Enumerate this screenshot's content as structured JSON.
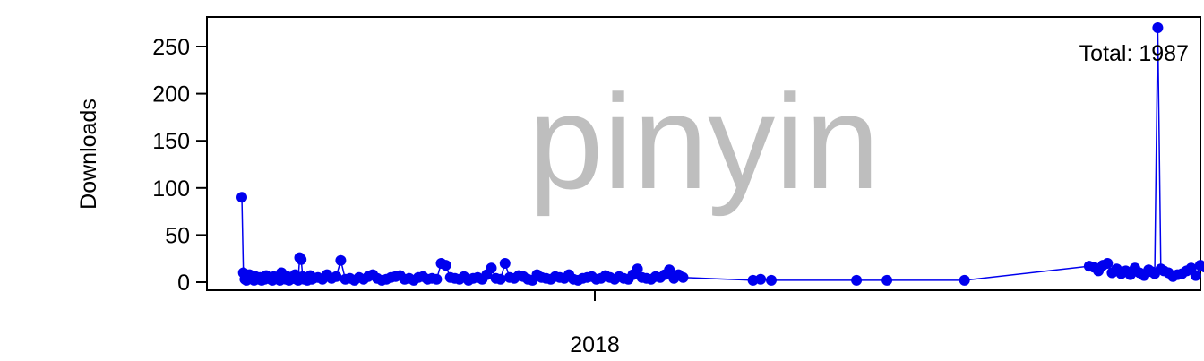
{
  "chart_data": {
    "type": "line",
    "title": "",
    "watermark": "pinyin",
    "annotation": "Total: 1987",
    "xlabel": "",
    "ylabel": "Downloads",
    "x_ticks": [
      "2018"
    ],
    "y_ticks": [
      0,
      50,
      100,
      150,
      200,
      250
    ],
    "ylim": [
      0,
      270
    ],
    "xlim": [
      "2017-05-04",
      "2019-02-14"
    ],
    "grid": false,
    "line_color": "#0000ee",
    "watermark_color": "#bebebe",
    "series": [
      {
        "x": [
          "2017-05-14",
          "2017-05-15",
          "2017-05-16",
          "2017-05-17",
          "2017-05-18",
          "2017-05-19",
          "2017-05-20",
          "2017-05-21",
          "2017-05-22",
          "2017-05-23",
          "2017-05-24",
          "2017-05-25",
          "2017-05-26",
          "2017-05-27",
          "2017-05-28",
          "2017-05-29",
          "2017-05-30",
          "2017-05-31",
          "2017-06-01",
          "2017-06-02",
          "2017-06-03",
          "2017-06-04",
          "2017-06-05",
          "2017-06-06",
          "2017-06-07",
          "2017-06-08",
          "2017-06-09",
          "2017-06-10",
          "2017-06-11",
          "2017-06-12",
          "2017-06-13",
          "2017-06-14",
          "2017-06-15",
          "2017-06-16",
          "2017-06-17",
          "2017-06-18",
          "2017-06-19",
          "2017-06-20",
          "2017-06-21",
          "2017-06-22",
          "2017-06-23",
          "2017-06-24",
          "2017-06-25",
          "2017-06-26",
          "2017-06-27",
          "2017-06-28",
          "2017-06-29",
          "2017-06-30",
          "2017-07-03",
          "2017-07-06",
          "2017-07-09",
          "2017-07-12",
          "2017-07-15",
          "2017-07-18",
          "2017-07-21",
          "2017-07-24",
          "2017-07-27",
          "2017-07-30",
          "2017-08-02",
          "2017-08-05",
          "2017-08-08",
          "2017-08-11",
          "2017-08-14",
          "2017-08-17",
          "2017-08-20",
          "2017-08-23",
          "2017-08-26",
          "2017-08-29",
          "2017-09-01",
          "2017-09-04",
          "2017-09-07",
          "2017-09-10",
          "2017-09-13",
          "2017-09-16",
          "2017-09-19",
          "2017-09-22",
          "2017-09-25",
          "2017-09-28",
          "2017-10-01",
          "2017-10-04",
          "2017-10-07",
          "2017-10-10",
          "2017-10-13",
          "2017-10-16",
          "2017-10-19",
          "2017-10-22",
          "2017-10-25",
          "2017-10-28",
          "2017-10-31",
          "2017-11-03",
          "2017-11-06",
          "2017-11-09",
          "2017-11-12",
          "2017-11-15",
          "2017-11-18",
          "2017-11-21",
          "2017-11-24",
          "2017-11-27",
          "2017-11-30",
          "2017-12-03",
          "2017-12-06",
          "2017-12-09",
          "2017-12-12",
          "2017-12-15",
          "2017-12-18",
          "2017-12-21",
          "2017-12-24",
          "2017-12-27",
          "2017-12-30",
          "2018-01-02",
          "2018-01-05",
          "2018-01-08",
          "2018-01-11",
          "2018-01-14",
          "2018-01-17",
          "2018-01-20",
          "2018-01-23",
          "2018-01-26",
          "2018-01-29",
          "2018-02-01",
          "2018-02-04",
          "2018-02-07",
          "2018-02-10",
          "2018-02-13",
          "2018-02-16",
          "2018-02-19",
          "2018-02-22",
          "2018-02-25",
          "2018-02-28",
          "2018-04-15",
          "2018-04-20",
          "2018-04-27",
          "2018-06-22",
          "2018-07-12",
          "2018-09-01",
          "2018-11-22",
          "2018-11-25",
          "2018-11-28",
          "2018-12-01",
          "2018-12-04",
          "2018-12-07",
          "2018-12-10",
          "2018-12-13",
          "2018-12-16",
          "2018-12-19",
          "2018-12-22",
          "2018-12-25",
          "2018-12-28",
          "2018-12-31",
          "2019-01-02",
          "2019-01-04",
          "2019-01-06",
          "2019-01-08",
          "2019-01-10",
          "2019-01-13",
          "2019-01-16",
          "2019-01-19",
          "2019-01-22",
          "2019-01-25",
          "2019-01-28",
          "2019-01-31",
          "2019-02-03",
          "2019-02-06",
          "2019-02-09"
        ],
        "values": [
          90,
          10,
          3,
          2,
          5,
          8,
          4,
          3,
          2,
          6,
          4,
          3,
          5,
          2,
          4,
          3,
          7,
          5,
          4,
          3,
          2,
          6,
          5,
          4,
          3,
          2,
          10,
          5,
          4,
          3,
          6,
          2,
          3,
          5,
          4,
          8,
          3,
          2,
          26,
          24,
          6,
          3,
          4,
          2,
          5,
          7,
          3,
          4,
          5,
          3,
          8,
          4,
          6,
          23,
          3,
          4,
          2,
          5,
          3,
          6,
          8,
          4,
          2,
          3,
          5,
          6,
          7,
          3,
          4,
          2,
          5,
          6,
          3,
          4,
          3,
          20,
          18,
          5,
          4,
          3,
          6,
          2,
          4,
          5,
          3,
          8,
          15,
          4,
          3,
          20,
          5,
          4,
          7,
          6,
          3,
          2,
          8,
          5,
          4,
          3,
          6,
          5,
          4,
          8,
          3,
          2,
          4,
          5,
          6,
          3,
          4,
          7,
          5,
          3,
          6,
          4,
          3,
          8,
          14,
          5,
          4,
          3,
          6,
          5,
          8,
          13,
          4,
          8,
          5,
          2,
          3,
          2,
          2,
          2,
          2,
          17,
          16,
          12,
          18,
          20,
          10,
          14,
          9,
          12,
          8,
          15,
          10,
          7,
          13,
          11,
          9,
          270,
          14,
          12,
          10,
          6,
          8,
          9,
          12,
          15,
          7,
          18,
          16,
          10
        ]
      }
    ]
  }
}
